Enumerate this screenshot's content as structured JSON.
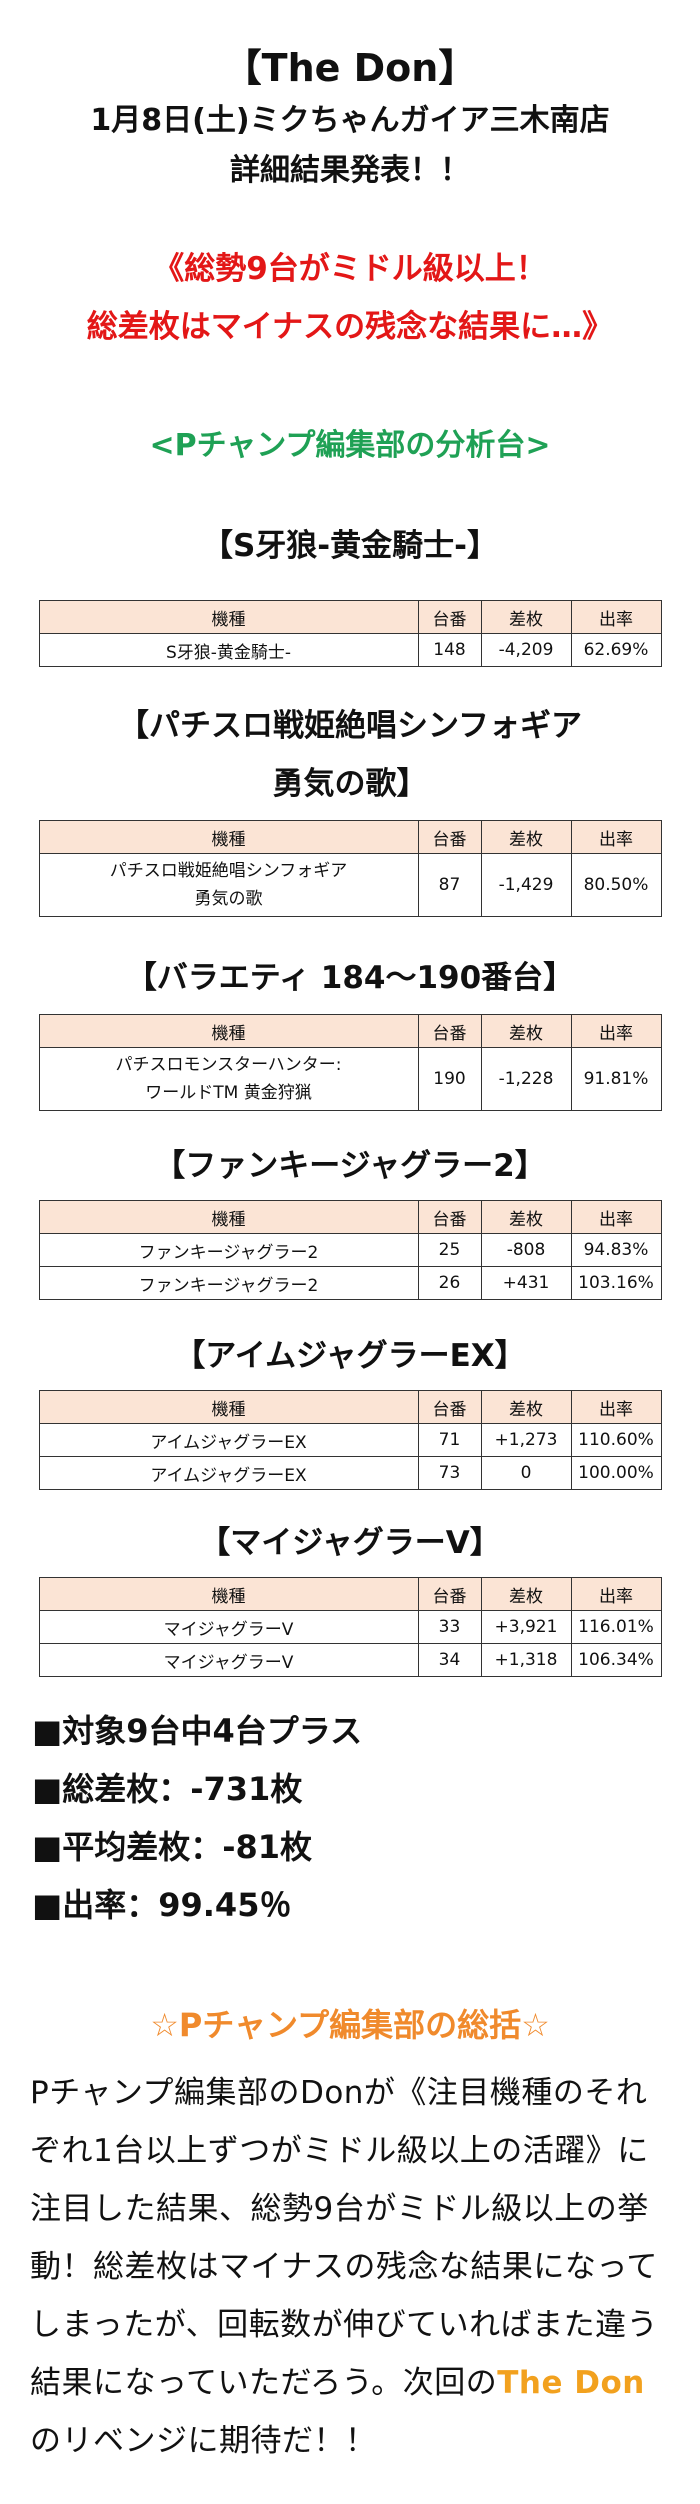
{
  "header": {
    "title": "【The Don】",
    "date_store": "1月8日(土)ミクちゃんガイア三木南店",
    "subtitle": "詳細結果発表！！"
  },
  "headline": {
    "line1": "《総勢9台がミドル級以上！",
    "line2": "総差枚はマイナスの残念な結果に…》"
  },
  "analysis_heading": "<Pチャンプ編集部の分析台>",
  "table_headers": {
    "machine": "機種",
    "number": "台番",
    "diff": "差枚",
    "rate": "出率"
  },
  "sections": [
    {
      "title": "【S牙狼-黄金騎士-】",
      "rows": [
        {
          "machine": "S牙狼-黄金騎士-",
          "number": "148",
          "diff": "-4,209",
          "rate": "62.69%"
        }
      ]
    },
    {
      "title": "【パチスロ戦姫絶唱シンフォギア",
      "title2": "勇気の歌】",
      "rows": [
        {
          "machine": "パチスロ戦姫絶唱シンフォギア",
          "machine2": "勇気の歌",
          "number": "87",
          "diff": "-1,429",
          "rate": "80.50%"
        }
      ]
    },
    {
      "title": "【バラエティ 184〜190番台】",
      "rows": [
        {
          "machine": "パチスロモンスターハンター:",
          "machine2": "ワールドTM 黄金狩猟",
          "number": "190",
          "diff": "-1,228",
          "rate": "91.81%"
        }
      ]
    },
    {
      "title": "【ファンキージャグラー2】",
      "rows": [
        {
          "machine": "ファンキージャグラー2",
          "number": "25",
          "diff": "-808",
          "rate": "94.83%"
        },
        {
          "machine": "ファンキージャグラー2",
          "number": "26",
          "diff": "+431",
          "rate": "103.16%"
        }
      ]
    },
    {
      "title": "【アイムジャグラーEX】",
      "rows": [
        {
          "machine": "アイムジャグラーEX",
          "number": "71",
          "diff": "+1,273",
          "rate": "110.60%"
        },
        {
          "machine": "アイムジャグラーEX",
          "number": "73",
          "diff": "0",
          "rate": "100.00%"
        }
      ]
    },
    {
      "title": "【マイジャグラーV】",
      "rows": [
        {
          "machine": "マイジャグラーV",
          "number": "33",
          "diff": "+3,921",
          "rate": "116.01%"
        },
        {
          "machine": "マイジャグラーV",
          "number": "34",
          "diff": "+1,318",
          "rate": "106.34%"
        }
      ]
    }
  ],
  "summary": {
    "line1": "■対象9台中4台プラス",
    "line2": "■総差枚：-731枚",
    "line3": "■平均差枚：-81枚",
    "line4": "■出率：99.45％"
  },
  "conclusion": {
    "heading": "☆Pチャンプ編集部の総括☆",
    "text_before": "Pチャンプ編集部のDonが《注目機種のそれぞれ1台以上ずつがミドル級以上の活躍》に注目した結果、総勢9台がミドル級以上の挙動！総差枚はマイナスの残念な結果になってしまったが、回転数が伸びていればまた違う結果になっていただろう。次回の",
    "highlight": "The Don",
    "text_after": "のリベンジに期待だ！！"
  },
  "colors": {
    "red": "#e31717",
    "green": "#1fa155",
    "orange": "#f08a2c",
    "header_bg": "#fbe4d5"
  }
}
